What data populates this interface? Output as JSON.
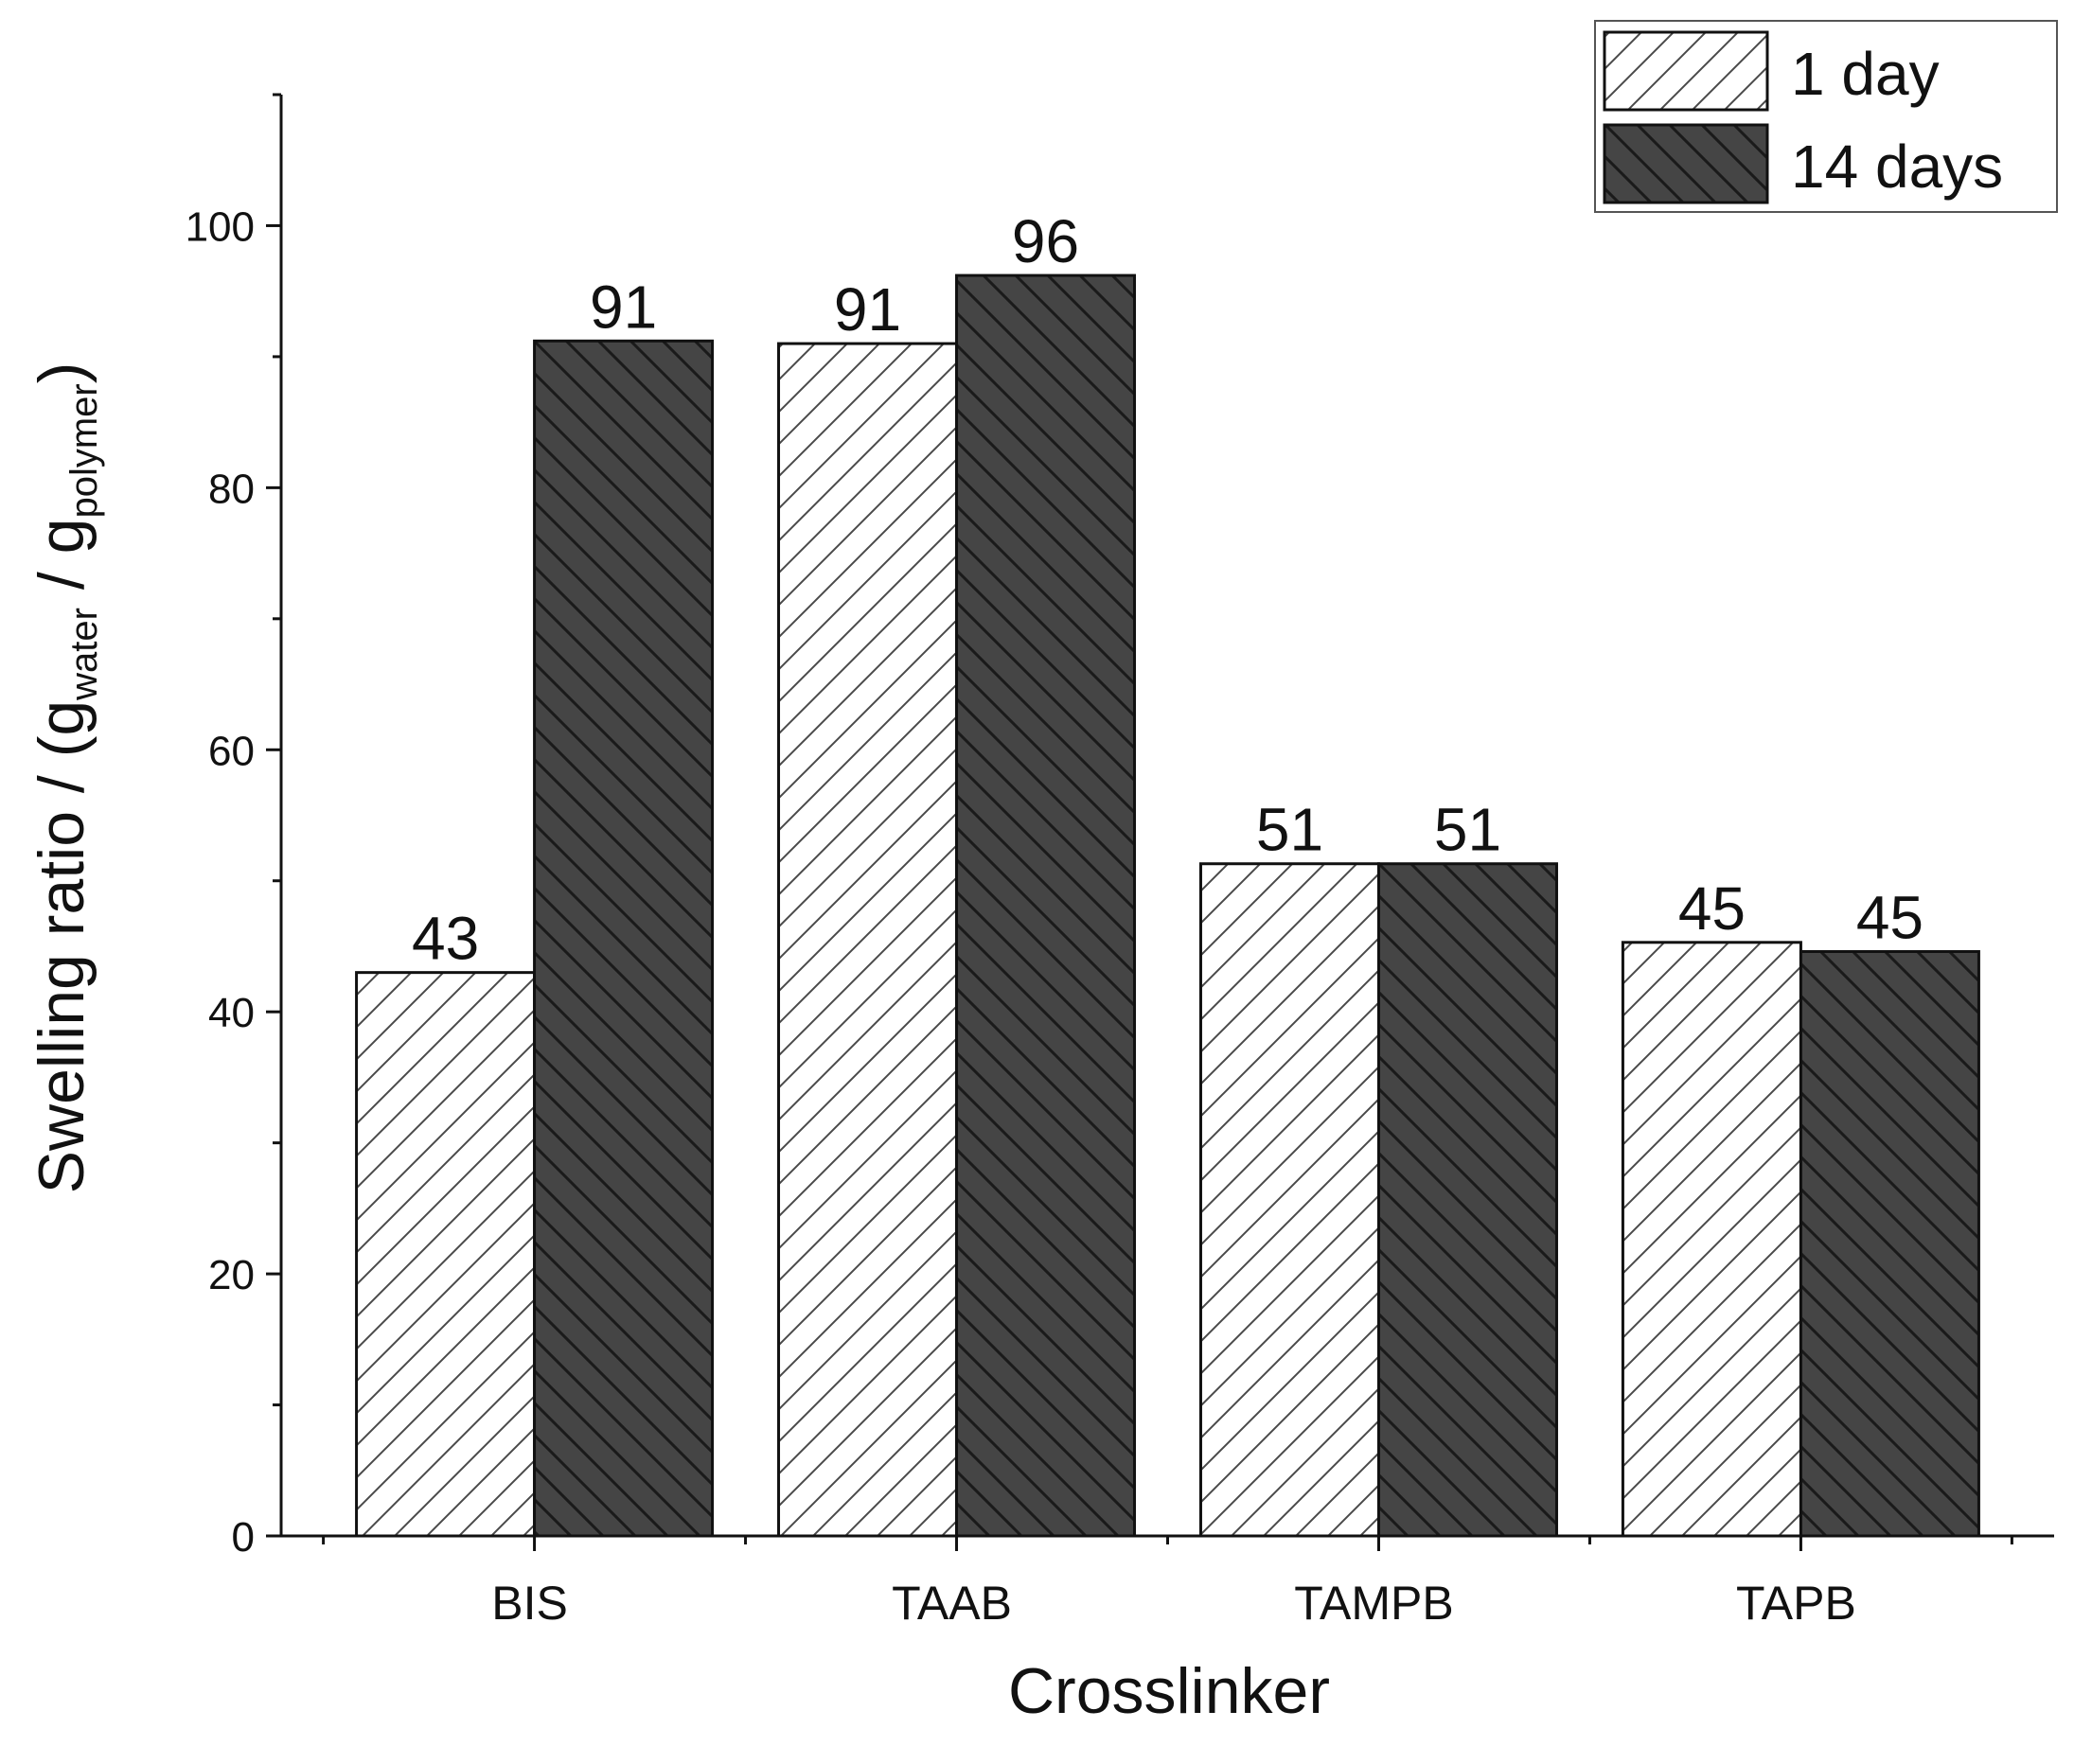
{
  "chart_data": {
    "type": "bar",
    "title": "",
    "xlabel": "Crosslinker",
    "ylabel": {
      "prefix": "Swelling ratio / (g",
      "sub1": "water",
      "middle": " / g",
      "sub2": "polymer",
      "suffix": ")"
    },
    "ylim": [
      0,
      110
    ],
    "yticks": [
      0,
      20,
      40,
      60,
      80,
      100
    ],
    "yminor_step": 10,
    "categories": [
      "BIS",
      "TAAB",
      "TAMPB",
      "TAPB"
    ],
    "series": [
      {
        "name": "1 day",
        "values": [
          43,
          91,
          51.3,
          45.3
        ],
        "labels": [
          "43",
          "91",
          "51",
          "45"
        ],
        "fill": "#ffffff",
        "hatch": "forward"
      },
      {
        "name": "14 days",
        "values": [
          91.2,
          96.2,
          51.3,
          44.6
        ],
        "labels": [
          "91",
          "96",
          "51",
          "45"
        ],
        "fill": "#454545",
        "hatch": "backward"
      }
    ],
    "legend": {
      "position": "top-right"
    },
    "grid": false
  }
}
